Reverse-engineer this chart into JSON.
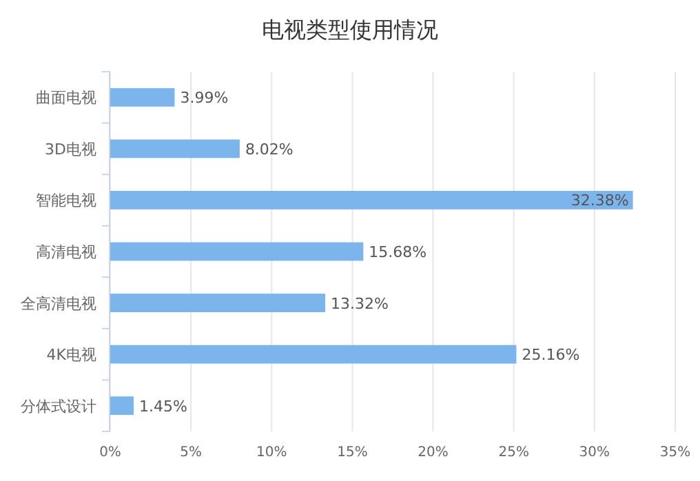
{
  "chart_data": {
    "type": "bar",
    "orientation": "horizontal",
    "title": "电视类型使用情况",
    "categories": [
      "曲面电视",
      "3D电视",
      "智能电视",
      "高清电视",
      "全高清电视",
      "4K电视",
      "分体式设计"
    ],
    "values": [
      3.99,
      8.02,
      32.38,
      15.68,
      13.32,
      25.16,
      1.45
    ],
    "value_labels": [
      "3.99%",
      "8.02%",
      "32.38%",
      "15.68%",
      "13.32%",
      "25.16%",
      "1.45%"
    ],
    "color": "#7cb5ec",
    "xlim": [
      0,
      35
    ],
    "xticks": [
      {
        "value": 0,
        "label": "0%"
      },
      {
        "value": 5,
        "label": "5%"
      },
      {
        "value": 10,
        "label": "10%"
      },
      {
        "value": 15,
        "label": "15%"
      },
      {
        "value": 20,
        "label": "20%"
      },
      {
        "value": 25,
        "label": "25%"
      },
      {
        "value": 30,
        "label": "30%"
      },
      {
        "value": 35,
        "label": "35%"
      }
    ],
    "grid": "x"
  }
}
